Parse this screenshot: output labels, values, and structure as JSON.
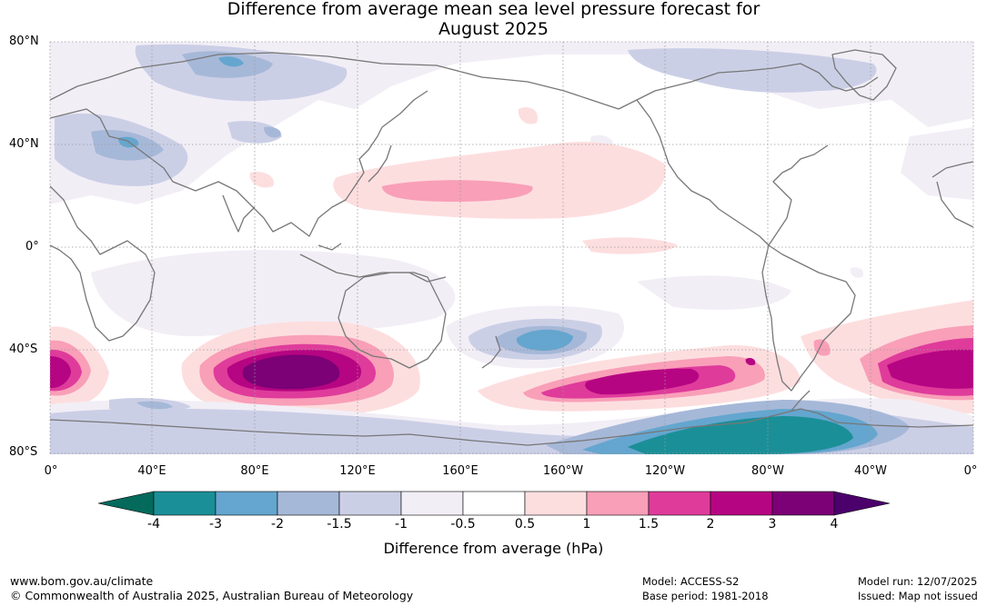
{
  "title": {
    "line1": "Difference from average mean sea level pressure forecast for",
    "line2": "August 2025"
  },
  "map": {
    "lat_labels": [
      "80°N",
      "40°N",
      "0°",
      "40°S",
      "80°S"
    ],
    "lon_labels": [
      "0°",
      "40°E",
      "80°E",
      "120°E",
      "160°E",
      "160°W",
      "120°W",
      "80°W",
      "40°W",
      "0°"
    ],
    "graticule": "dotted-grey",
    "coastline_color": "#777777"
  },
  "colorbar": {
    "title": "Difference from average (hPa)",
    "tick_labels": [
      "-4",
      "-3",
      "-2",
      "-1.5",
      "-1",
      "-0.5",
      "0.5",
      "1",
      "1.5",
      "2",
      "3",
      "4"
    ],
    "bins": [
      {
        "range": "-4 to -3",
        "color": "#1b8f97"
      },
      {
        "range": "-3 to -2",
        "color": "#64a6cf"
      },
      {
        "range": "-2 to -1.5",
        "color": "#a6b8d8"
      },
      {
        "range": "-1.5 to -1",
        "color": "#cbcfe6"
      },
      {
        "range": "-1 to -0.5",
        "color": "#f2eef6"
      },
      {
        "range": "-0.5 to 0.5",
        "color": "#ffffff"
      },
      {
        "range": "0.5 to 1",
        "color": "#fddedf"
      },
      {
        "range": "1 to 1.5",
        "color": "#f99fb8"
      },
      {
        "range": "1.5 to 2",
        "color": "#df3b9b"
      },
      {
        "range": "2 to 3",
        "color": "#b60582"
      },
      {
        "range": "3 to 4",
        "color": "#7c0076"
      }
    ],
    "low_extend_color": "#046a5c",
    "high_extend_color": "#4b006b"
  },
  "anomalies": [
    {
      "region": "South Indian Ocean high",
      "peak_hPa": 4
    },
    {
      "region": "South Pacific high",
      "peak_hPa": 3
    },
    {
      "region": "South Atlantic high",
      "peak_hPa": 3
    },
    {
      "region": "North Pacific high",
      "peak_hPa": 1.5
    },
    {
      "region": "Antarctic low",
      "peak_hPa": -4
    },
    {
      "region": "Southwest Pacific low",
      "peak_hPa": -3
    }
  ],
  "footer": {
    "url": "www.bom.gov.au/climate",
    "copyright": "© Commonwealth of Australia 2025, Australian Bureau of Meteorology",
    "model": "Model: ACCESS-S2",
    "base_period": "Base period: 1981-2018",
    "model_run": "Model run: 12/07/2025",
    "issued": "Issued: Map not issued"
  }
}
